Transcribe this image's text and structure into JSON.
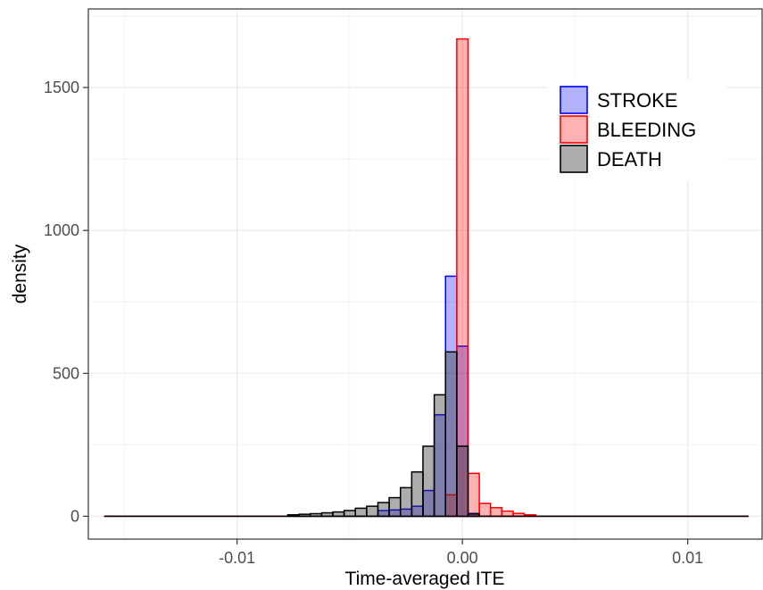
{
  "chart_data": {
    "type": "bar",
    "subtype": "overlaid histogram",
    "xlabel": "Time-averaged ITE",
    "ylabel": "density",
    "xlim": [
      -0.0166,
      0.0133
    ],
    "ylim": [
      -80,
      1775
    ],
    "x_ticks": [
      {
        "value": -0.01,
        "label": "-0.01"
      },
      {
        "value": 0.0,
        "label": "0.00"
      },
      {
        "value": 0.01,
        "label": "0.01"
      }
    ],
    "y_ticks": [
      {
        "value": 0,
        "label": "0"
      },
      {
        "value": 500,
        "label": "500"
      },
      {
        "value": 1000,
        "label": "1000"
      },
      {
        "value": 1500,
        "label": "1500"
      }
    ],
    "grid": true,
    "legend_position": "top-right",
    "bin_width": 0.0005,
    "series": [
      {
        "name": "STROKE",
        "fill": "#0000ff",
        "fill_opacity": 0.3,
        "stroke": "#0000ff",
        "bins": [
          {
            "x": -0.0035,
            "density": 20
          },
          {
            "x": -0.003,
            "density": 22
          },
          {
            "x": -0.0025,
            "density": 25
          },
          {
            "x": -0.002,
            "density": 35
          },
          {
            "x": -0.0015,
            "density": 90
          },
          {
            "x": -0.001,
            "density": 355
          },
          {
            "x": -0.0005,
            "density": 840
          },
          {
            "x": 0.0,
            "density": 595
          },
          {
            "x": 0.0005,
            "density": 10
          }
        ]
      },
      {
        "name": "BLEEDING",
        "fill": "#ff0000",
        "fill_opacity": 0.3,
        "stroke": "#ff0000",
        "bins": [
          {
            "x": -0.0005,
            "density": 75
          },
          {
            "x": 0.0,
            "density": 1670
          },
          {
            "x": 0.0005,
            "density": 150
          },
          {
            "x": 0.001,
            "density": 45
          },
          {
            "x": 0.0015,
            "density": 30
          },
          {
            "x": 0.002,
            "density": 18
          },
          {
            "x": 0.0025,
            "density": 10
          },
          {
            "x": 0.003,
            "density": 5
          }
        ]
      },
      {
        "name": "DEATH",
        "fill": "#333333",
        "fill_opacity": 0.4,
        "stroke": "#000000",
        "bins": [
          {
            "x": -0.0075,
            "density": 5
          },
          {
            "x": -0.007,
            "density": 7
          },
          {
            "x": -0.0065,
            "density": 9
          },
          {
            "x": -0.006,
            "density": 12
          },
          {
            "x": -0.0055,
            "density": 15
          },
          {
            "x": -0.005,
            "density": 20
          },
          {
            "x": -0.0045,
            "density": 28
          },
          {
            "x": -0.004,
            "density": 35
          },
          {
            "x": -0.0035,
            "density": 48
          },
          {
            "x": -0.003,
            "density": 65
          },
          {
            "x": -0.0025,
            "density": 100
          },
          {
            "x": -0.002,
            "density": 155
          },
          {
            "x": -0.0015,
            "density": 245
          },
          {
            "x": -0.001,
            "density": 425
          },
          {
            "x": -0.0005,
            "density": 575
          },
          {
            "x": 0.0,
            "density": 245
          },
          {
            "x": 0.0005,
            "density": 8
          }
        ]
      }
    ]
  }
}
